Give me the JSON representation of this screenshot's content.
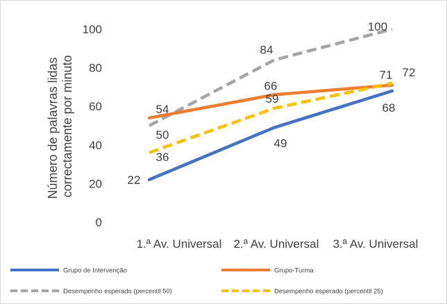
{
  "chart_data": {
    "type": "line",
    "title": "",
    "xlabel": "",
    "ylabel": "Número de palavras lidas correctamente por minuto",
    "ylabel_lines": [
      "Número de palavras lidas",
      "correctamente por minuto"
    ],
    "categories": [
      "1.ª Av. Universal",
      "2.ª Av. Universal",
      "3.ª Av. Universal"
    ],
    "ylim": [
      0,
      100
    ],
    "yticks": [
      "0",
      "20",
      "40",
      "60",
      "80",
      "100"
    ],
    "grid": false,
    "legend_position": "bottom",
    "series": [
      {
        "name": "Grupo de Intervenção",
        "values": [
          22,
          49,
          68
        ],
        "color": "#4472c4",
        "style": "solid"
      },
      {
        "name": "Grupo-Turma",
        "values": [
          54,
          66,
          71
        ],
        "color": "#ed7d31",
        "style": "solid"
      },
      {
        "name": "Desempenho esperado (percentil 50)",
        "values": [
          50,
          84,
          100
        ],
        "color": "#a5a5a5",
        "style": "dashed"
      },
      {
        "name": "Desempenho esperado (percentil 25)",
        "values": [
          36,
          59,
          72
        ],
        "color": "#ffc000",
        "style": "dashed"
      }
    ]
  }
}
